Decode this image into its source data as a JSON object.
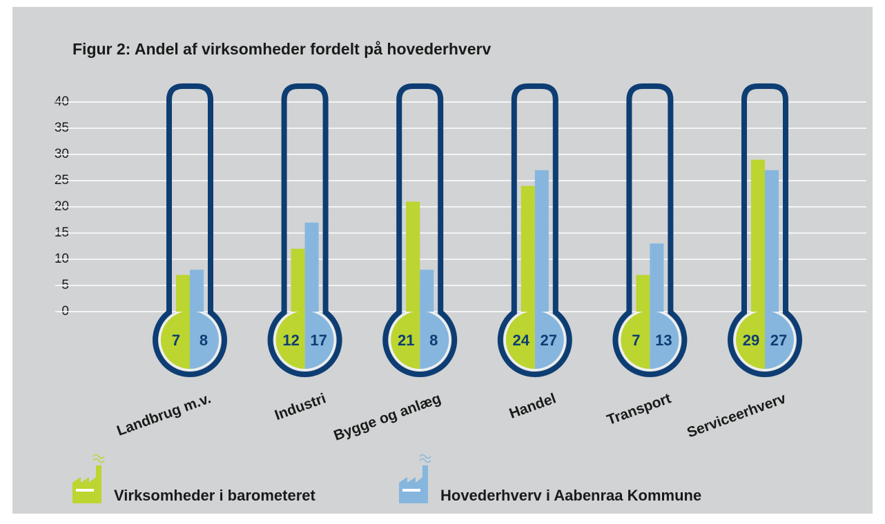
{
  "chart_data": {
    "type": "bar",
    "title": "Figur 2: Andel af virksomheder fordelt på hovederhverv",
    "categories": [
      "Landbrug m.v.",
      "Industri",
      "Bygge og anlæg",
      "Handel",
      "Transport",
      "Serviceerhverv"
    ],
    "series": [
      {
        "name": "Virksomheder i barometeret",
        "color": "#bcd530",
        "values": [
          7,
          12,
          21,
          24,
          7,
          29
        ]
      },
      {
        "name": "Hovederhverv i Aabenraa Kommune",
        "color": "#86b6de",
        "values": [
          8,
          17,
          8,
          27,
          13,
          27
        ]
      }
    ],
    "ylim": [
      0,
      40
    ],
    "yticks": [
      0,
      5,
      10,
      15,
      20,
      25,
      30,
      35,
      40
    ],
    "grid": true
  }
}
